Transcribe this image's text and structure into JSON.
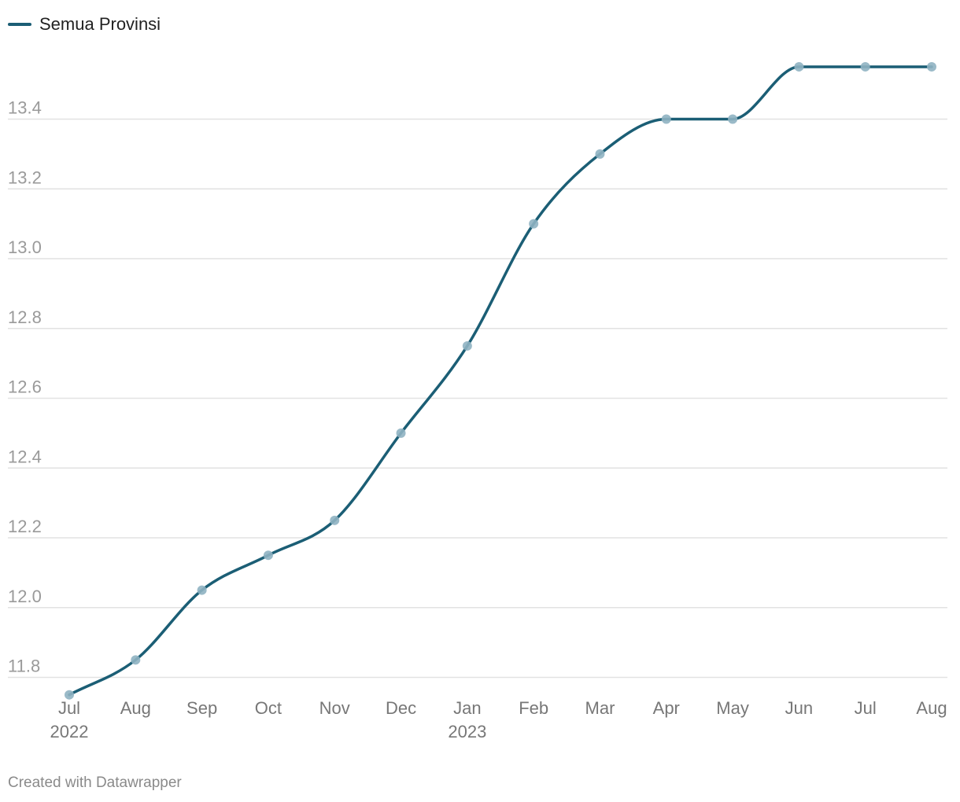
{
  "legend": {
    "label": "Semua Provinsi",
    "color": "#1b5e75"
  },
  "footer": {
    "credit": "Created with Datawrapper"
  },
  "colors": {
    "line": "#1b5e75",
    "marker": "#8fb3c2",
    "grid": "#e2e2e2",
    "tick_text": "#9a9a9a",
    "xtick_text": "#777777"
  },
  "chart_data": {
    "type": "line",
    "x_labels": [
      {
        "month": "Jul",
        "year": "2022"
      },
      {
        "month": "Aug",
        "year": ""
      },
      {
        "month": "Sep",
        "year": ""
      },
      {
        "month": "Oct",
        "year": ""
      },
      {
        "month": "Nov",
        "year": ""
      },
      {
        "month": "Dec",
        "year": ""
      },
      {
        "month": "Jan",
        "year": "2023"
      },
      {
        "month": "Feb",
        "year": ""
      },
      {
        "month": "Mar",
        "year": ""
      },
      {
        "month": "Apr",
        "year": ""
      },
      {
        "month": "May",
        "year": ""
      },
      {
        "month": "Jun",
        "year": ""
      },
      {
        "month": "Jul",
        "year": ""
      },
      {
        "month": "Aug",
        "year": ""
      }
    ],
    "series": [
      {
        "name": "Semua Provinsi",
        "values": [
          11.75,
          11.85,
          12.05,
          12.15,
          12.25,
          12.5,
          12.75,
          13.1,
          13.3,
          13.4,
          13.4,
          13.55,
          13.55,
          13.55
        ]
      }
    ],
    "yticks": [
      "11.8",
      "12.0",
      "12.2",
      "12.4",
      "12.6",
      "12.8",
      "13.0",
      "13.2",
      "13.4"
    ],
    "ylim": [
      11.75,
      13.55
    ],
    "grid": true,
    "legend_position": "top-left"
  }
}
